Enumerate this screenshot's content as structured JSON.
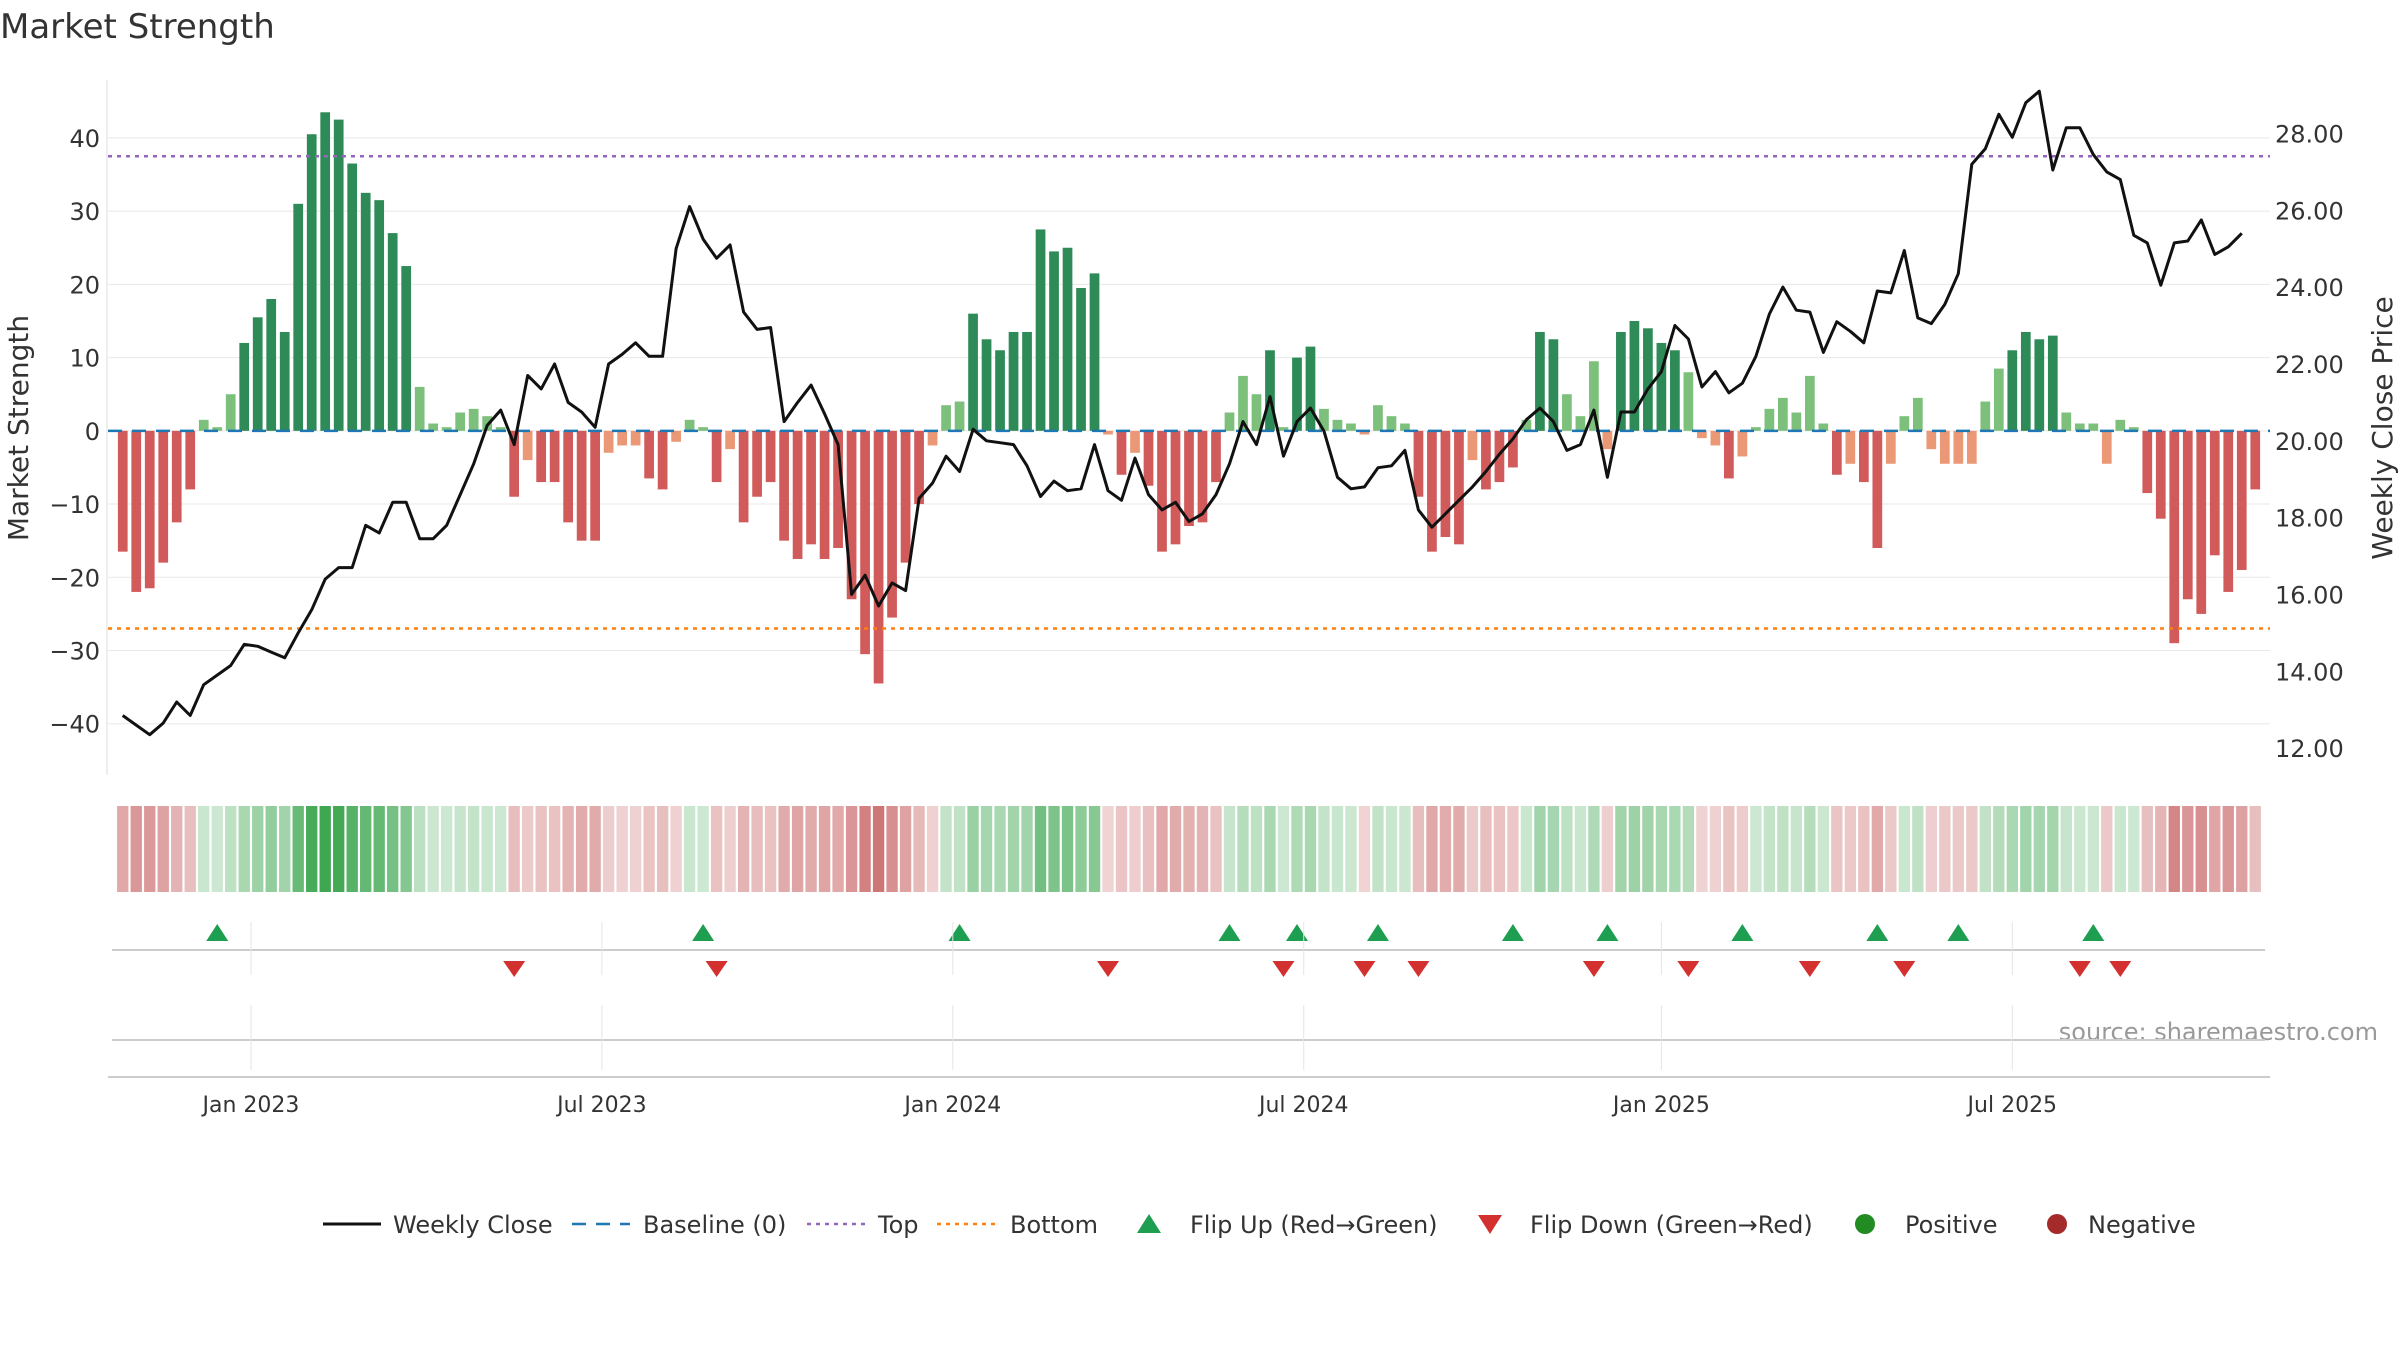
{
  "chart_data": {
    "type": "bar+line",
    "title": "Market Strength",
    "ylabel_left": "Market Strength",
    "ylabel_right": "Weekly Close Price",
    "ylim_left": [
      -47,
      49
    ],
    "ylim_right": [
      11.3,
      29.6
    ],
    "left_ticks": [
      40,
      30,
      20,
      10,
      0,
      -10,
      -20,
      -30,
      -40
    ],
    "left_tick_labels": [
      "40",
      "30",
      "20",
      "10",
      "0",
      "−10",
      "−20",
      "−30",
      "−40"
    ],
    "right_ticks": [
      28,
      26,
      24,
      22,
      20,
      18,
      16,
      14,
      12
    ],
    "right_tick_labels": [
      "28.00",
      "26.00",
      "24.00",
      "22.00",
      "20.00",
      "18.00",
      "16.00",
      "14.00",
      "12.00"
    ],
    "x_ticks": [
      "Jan 2023",
      "Jul 2023",
      "Jan 2024",
      "Jul 2024",
      "Jan 2025",
      "Jul 2025"
    ],
    "grid": true,
    "top_line": 37.5,
    "bottom_line": -27,
    "baseline": 0,
    "strength": [
      -16.5,
      -22,
      -21.5,
      -18,
      -12.5,
      -8,
      1.5,
      0.5,
      5,
      12,
      15.5,
      18,
      13.5,
      31,
      40.5,
      43.5,
      42.5,
      36.5,
      32.5,
      31.5,
      27,
      22.5,
      6,
      1,
      0.5,
      2.5,
      3,
      2,
      0.5,
      -9,
      -4,
      -7,
      -7,
      -12.5,
      -15,
      -15,
      -3,
      -2,
      -2,
      -6.5,
      -8,
      -1.5,
      1.5,
      0.5,
      -7,
      -2.5,
      -12.5,
      -9,
      -7,
      -15,
      -17.5,
      -15.5,
      -17.5,
      -16,
      -23,
      -30.5,
      -34.5,
      -25.5,
      -18,
      -10,
      -2,
      3.5,
      4,
      16,
      12.5,
      11,
      13.5,
      13.5,
      27.5,
      24.5,
      25,
      19.5,
      21.5,
      -0.5,
      -6,
      -3,
      -7.5,
      -16.5,
      -15.5,
      -13,
      -12.5,
      -7,
      2.5,
      7.5,
      5,
      11,
      0.5,
      10,
      11.5,
      3,
      1.5,
      1,
      -0.5,
      3.5,
      2,
      1,
      -9,
      -16.5,
      -14.5,
      -15.5,
      -4,
      -8,
      -7,
      -5,
      1.5,
      13.5,
      12.5,
      5,
      2,
      9.5,
      -2.5,
      13.5,
      15,
      14,
      12,
      11,
      8,
      -1,
      -2,
      -6.5,
      -3.5,
      0.5,
      3,
      4.5,
      2.5,
      7.5,
      1,
      -6,
      -4.5,
      -7,
      -16,
      -4.5,
      2,
      4.5,
      -2.5,
      -4.5,
      -4.5,
      -4.5,
      4,
      8.5,
      11,
      13.5,
      12.5,
      13,
      2.5,
      1,
      1,
      -4.5,
      1.5,
      0.5,
      -8.5,
      -12,
      -29,
      -23,
      -25,
      -17,
      -22,
      -19,
      -8
    ],
    "weekly_close": [
      12.85,
      12.6,
      12.35,
      12.65,
      13.2,
      12.85,
      13.65,
      13.9,
      14.15,
      14.7,
      14.65,
      14.5,
      14.35,
      15.0,
      15.6,
      16.4,
      16.7,
      16.7,
      17.8,
      17.6,
      18.4,
      18.4,
      17.45,
      17.45,
      17.8,
      18.6,
      19.4,
      20.4,
      20.8,
      19.9,
      21.7,
      21.35,
      22.0,
      21.0,
      20.75,
      20.35,
      22.0,
      22.25,
      22.55,
      22.2,
      22.2,
      25.0,
      26.1,
      25.25,
      24.75,
      25.1,
      23.35,
      22.9,
      22.95,
      20.5,
      21.0,
      21.45,
      20.7,
      19.9,
      16.0,
      16.5,
      15.7,
      16.3,
      16.1,
      18.5,
      18.9,
      19.6,
      19.2,
      20.3,
      20.0,
      19.95,
      19.9,
      19.35,
      18.55,
      18.95,
      18.7,
      18.75,
      19.9,
      18.7,
      18.45,
      19.55,
      18.6,
      18.2,
      18.4,
      17.9,
      18.1,
      18.6,
      19.4,
      20.5,
      19.9,
      21.15,
      19.6,
      20.5,
      20.85,
      20.25,
      19.05,
      18.75,
      18.8,
      19.3,
      19.35,
      19.75,
      18.2,
      17.75,
      18.1,
      18.45,
      18.8,
      19.2,
      19.65,
      20.05,
      20.55,
      20.85,
      20.5,
      19.75,
      19.9,
      20.8,
      19.05,
      20.75,
      20.75,
      21.35,
      21.8,
      23.0,
      22.65,
      21.4,
      21.8,
      21.25,
      21.5,
      22.2,
      23.3,
      24.0,
      23.4,
      23.35,
      22.3,
      23.1,
      22.85,
      22.55,
      23.9,
      23.85,
      24.95,
      23.2,
      23.05,
      23.55,
      24.35,
      27.2,
      27.6,
      28.5,
      27.9,
      28.8,
      29.1,
      27.05,
      28.15,
      28.15,
      27.45,
      27.0,
      26.8,
      25.35,
      25.15,
      24.05,
      25.15,
      25.2,
      25.75,
      24.85,
      25.05,
      25.4
    ],
    "flips_up": [
      7,
      43,
      62,
      82,
      87,
      93,
      103,
      110,
      120,
      130,
      136,
      146
    ],
    "flips_down": [
      29,
      44,
      73,
      86,
      92,
      96,
      109,
      116,
      125,
      132,
      145,
      148
    ],
    "colors": {
      "positive_strong": "#2e8a57",
      "positive_weak": "#7cc07c",
      "negative_strong": "#d15a5a",
      "negative_weak": "#eb9877",
      "heat_positive": "#3da650",
      "heat_negative": "#c55a5a",
      "flip_up": "#1e9e50",
      "flip_down": "#d33030",
      "weekly_close": "#111111",
      "baseline": "#1f77b4",
      "top": "#9467bd",
      "bottom": "#ff7f0e",
      "positive_dot": "#228b22",
      "negative_dot": "#a52a2a"
    },
    "legend": [
      {
        "label": "Weekly Close",
        "kind": "line"
      },
      {
        "label": "Baseline (0)",
        "kind": "dashed"
      },
      {
        "label": "Top",
        "kind": "dotted-top"
      },
      {
        "label": "Bottom",
        "kind": "dotted-bottom"
      },
      {
        "label": "Flip Up (Red→Green)",
        "kind": "tri-up"
      },
      {
        "label": "Flip Down (Green→Red)",
        "kind": "tri-down"
      },
      {
        "label": "Positive",
        "kind": "dot-pos"
      },
      {
        "label": "Negative",
        "kind": "dot-neg"
      }
    ],
    "legend_placement": "bottom"
  },
  "source": "source: sharemaestro.com"
}
